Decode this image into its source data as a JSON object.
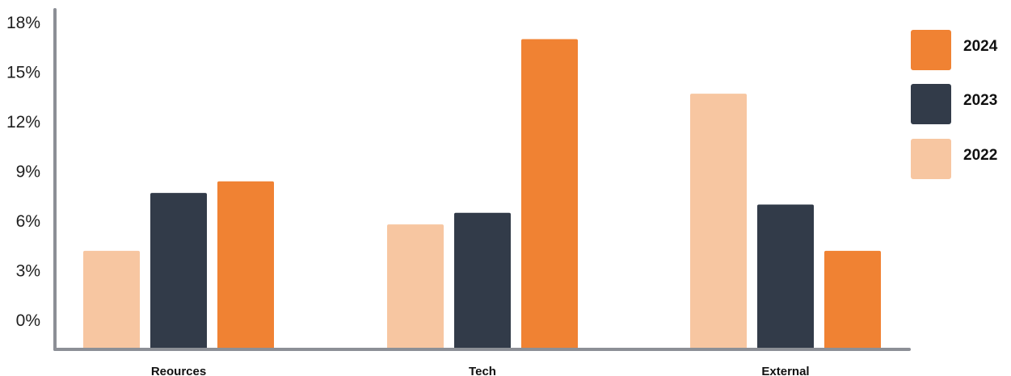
{
  "chart_data": {
    "type": "bar",
    "categories": [
      "Reources",
      "Tech",
      "External"
    ],
    "series": [
      {
        "name": "2022",
        "values": [
          4.2,
          5.8,
          13.7
        ],
        "color": "#F7C6A1"
      },
      {
        "name": "2023",
        "values": [
          7.7,
          6.5,
          7.0
        ],
        "color": "#323B49"
      },
      {
        "name": "2024",
        "values": [
          8.4,
          17.0,
          4.2
        ],
        "color": "#F08233"
      }
    ],
    "y_ticks": [
      {
        "value": 0,
        "label": "0%"
      },
      {
        "value": 3,
        "label": "3%"
      },
      {
        "value": 6,
        "label": "6%"
      },
      {
        "value": 9,
        "label": "9%"
      },
      {
        "value": 12,
        "label": "12%"
      },
      {
        "value": 15,
        "label": "15%"
      },
      {
        "value": 18,
        "label": "18%"
      }
    ],
    "ylim": [
      0,
      18
    ],
    "legend_order": [
      "2024",
      "2023",
      "2022"
    ],
    "legend_position": "right",
    "grid": false,
    "axis_color": "#8C8F96"
  }
}
